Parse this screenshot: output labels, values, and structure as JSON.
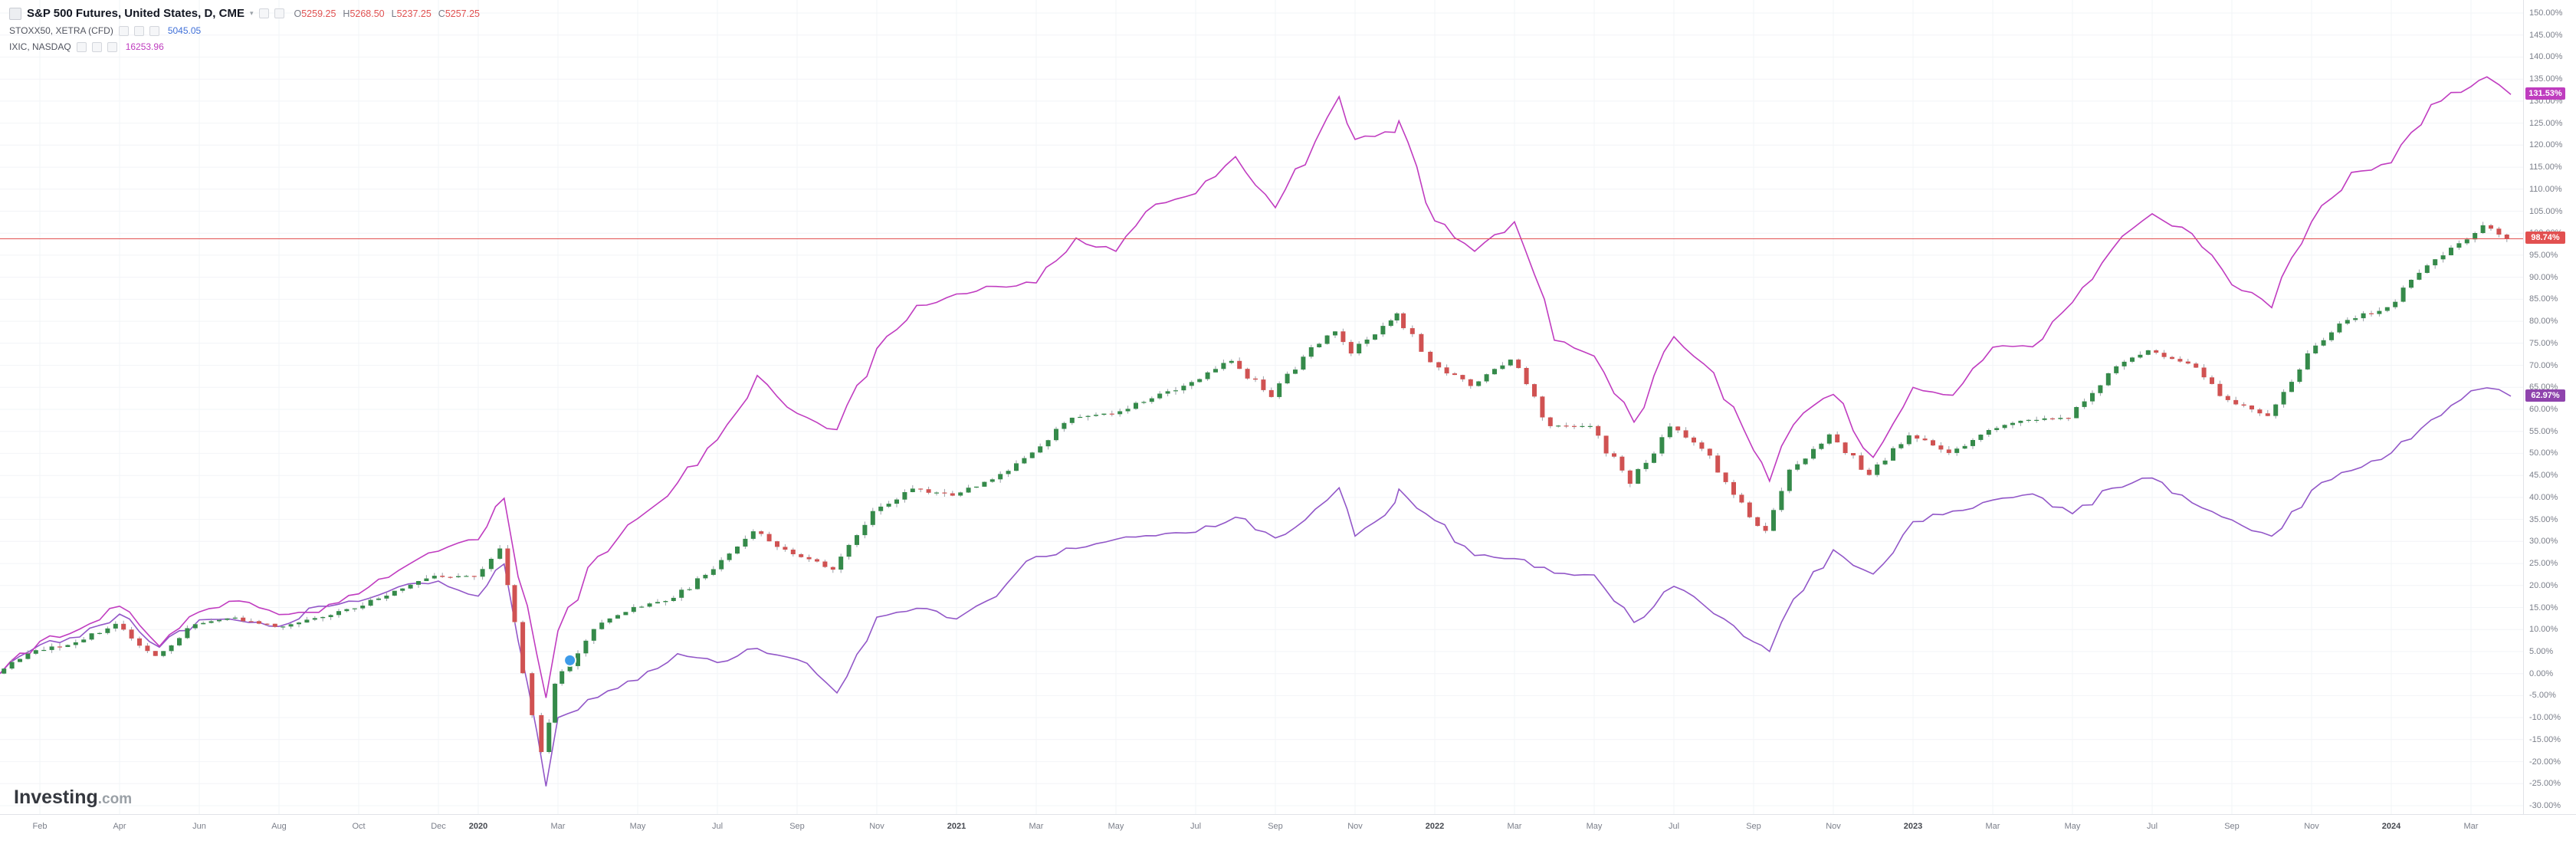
{
  "legend": {
    "sp": {
      "title": "S&P 500 Futures, United States, D, CME",
      "o_label": "O",
      "o": "5259.25",
      "h_label": "H",
      "h": "5268.50",
      "l_label": "L",
      "l": "5237.25",
      "c_label": "C",
      "c": "5257.25"
    },
    "stoxx": {
      "title": "STOXX50, XETRA (CFD)",
      "value": "5045.05"
    },
    "nasdaq": {
      "title": "IXIC, NASDAQ",
      "value": "16253.96"
    }
  },
  "watermark": {
    "name": "Investing",
    "tld": ".com"
  },
  "colors": {
    "sp_up": "#358a4a",
    "sp_down": "#d05252",
    "wick": "#9aa0a8",
    "nasdaq_line": "#c03cc0",
    "stoxx_line": "#9257c8",
    "price_line": "#e25050",
    "badge_nasdaq": "#bf3dbf",
    "badge_sp": "#e25050",
    "badge_stoxx": "#8f44ad",
    "ohlc_values": "#e05252",
    "stoxx_value": "#3f6fd8",
    "nasdaq_value": "#bf3dbf",
    "marker": "#3d9be9",
    "grid": "#f2f4f7"
  },
  "chart_data": {
    "type": "line",
    "title": "S&P 500 Futures vs STOXX50 vs NASDAQ Composite, % change since Jan 2019",
    "x_unit": "months since end of Jan 2019 (fractional = intra-month extremes)",
    "x": [
      -1,
      0,
      1,
      2,
      3,
      4,
      5,
      6,
      7,
      8,
      9,
      10,
      11,
      11.65,
      12,
      12.7,
      13,
      14,
      15,
      16,
      17,
      18,
      19,
      20,
      21,
      22,
      23,
      24,
      25,
      26,
      27,
      28,
      29,
      30,
      31,
      32,
      32.6,
      33,
      34,
      34.1,
      35,
      36,
      37,
      38,
      39,
      40,
      41,
      42,
      43,
      43.4,
      44,
      45,
      46,
      47,
      48,
      49,
      50,
      51,
      52,
      53,
      54,
      55,
      56,
      57,
      58,
      59,
      60,
      61,
      61.4,
      62
    ],
    "series": [
      {
        "name": "S&P 500 Futures",
        "style": "candlestick",
        "color_up": "#358a4a",
        "color_down": "#d05252",
        "last_pct": 98.74,
        "values": [
          0,
          5.3,
          7.1,
          11.3,
          4.0,
          11.2,
          12.7,
          10.6,
          12.6,
          14.8,
          18.8,
          22.2,
          22.0,
          28.4,
          11.7,
          -17.8,
          -2.3,
          10.1,
          15.1,
          17.2,
          23.7,
          32.3,
          27.1,
          23.6,
          36.9,
          42.0,
          40.4,
          44.1,
          50.2,
          58.1,
          58.9,
          62.5,
          66.2,
          71.0,
          62.8,
          74.1,
          77.7,
          72.7,
          80.2,
          81.8,
          70.7,
          65.3,
          71.3,
          56.2,
          56.2,
          43.1,
          56.1,
          49.5,
          35.5,
          32.4,
          46.3,
          54.3,
          45.1,
          54.1,
          50.1,
          55.3,
          57.6,
          58.0,
          68.2,
          73.4,
          70.4,
          62.1,
          58.5,
          72.7,
          80.3,
          83.2,
          92.7,
          98.6,
          101.8,
          98.7
        ]
      },
      {
        "name": "IXIC, NASDAQ",
        "style": "line",
        "color": "#c03cc0",
        "last_pct": 131.53,
        "values": [
          0,
          7.3,
          10.1,
          15.3,
          6.2,
          14.0,
          16.5,
          13.4,
          13.9,
          18.1,
          23.4,
          27.8,
          30.4,
          39.8,
          22.0,
          -5.5,
          9.7,
          26.6,
          35.2,
          43.3,
          53.1,
          67.7,
          59.1,
          55.4,
          73.8,
          83.6,
          86.2,
          87.9,
          88.7,
          98.9,
          95.9,
          106.6,
          109.0,
          117.4,
          105.8,
          120.8,
          131.0,
          121.3,
          122.9,
          125.5,
          102.8,
          95.9,
          102.6,
          75.7,
          72.1,
          57.1,
          76.5,
          68.3,
          50.7,
          43.7,
          56.5,
          63.4,
          49.1,
          65.0,
          63.2,
          74.1,
          74.2,
          84.3,
          96.4,
          104.4,
          99.9,
          88.3,
          83.1,
          102.6,
          113.8,
          116.0,
          129.2,
          133.3,
          135.5,
          131.5
        ]
      },
      {
        "name": "STOXX50, XETRA (CFD)",
        "style": "line",
        "color": "#9257c8",
        "last_pct": 62.97,
        "values": [
          0,
          6.5,
          8.3,
          13.5,
          6.0,
          12.2,
          12.0,
          10.7,
          15.3,
          16.4,
          19.7,
          21.0,
          17.6,
          24.9,
          7.5,
          -25.6,
          -10.0,
          -5.4,
          -1.5,
          4.5,
          2.5,
          5.7,
          3.2,
          -4.4,
          12.8,
          14.8,
          12.4,
          17.5,
          26.6,
          28.4,
          30.5,
          31.3,
          32.1,
          35.5,
          30.8,
          37.3,
          42.2,
          31.2,
          38.8,
          41.9,
          34.8,
          26.8,
          26.1,
          22.8,
          22.4,
          11.6,
          19.8,
          13.6,
          7.2,
          5.0,
          16.9,
          28.1,
          22.6,
          34.5,
          36.9,
          39.4,
          40.8,
          36.3,
          42.1,
          44.4,
          38.8,
          34.9,
          31.2,
          41.6,
          46.1,
          50.1,
          57.6,
          64.2,
          64.9,
          63.0
        ]
      }
    ],
    "y_axis": {
      "min": -30,
      "max": 150,
      "step": 5,
      "unit": "%",
      "side": "right",
      "grid": true
    },
    "x_axis": {
      "ticks": [
        {
          "m": 0,
          "label": "Feb"
        },
        {
          "m": 2,
          "label": "Apr"
        },
        {
          "m": 4,
          "label": "Jun"
        },
        {
          "m": 6,
          "label": "Aug"
        },
        {
          "m": 8,
          "label": "Oct"
        },
        {
          "m": 10,
          "label": "Dec"
        },
        {
          "m": 11,
          "label": "2020"
        },
        {
          "m": 13,
          "label": "Mar"
        },
        {
          "m": 15,
          "label": "May"
        },
        {
          "m": 17,
          "label": "Jul"
        },
        {
          "m": 19,
          "label": "Sep"
        },
        {
          "m": 21,
          "label": "Nov"
        },
        {
          "m": 23,
          "label": "2021"
        },
        {
          "m": 25,
          "label": "Mar"
        },
        {
          "m": 27,
          "label": "May"
        },
        {
          "m": 29,
          "label": "Jul"
        },
        {
          "m": 31,
          "label": "Sep"
        },
        {
          "m": 33,
          "label": "Nov"
        },
        {
          "m": 35,
          "label": "2022"
        },
        {
          "m": 37,
          "label": "Mar"
        },
        {
          "m": 39,
          "label": "May"
        },
        {
          "m": 41,
          "label": "Jul"
        },
        {
          "m": 43,
          "label": "Sep"
        },
        {
          "m": 45,
          "label": "Nov"
        },
        {
          "m": 47,
          "label": "2023"
        },
        {
          "m": 49,
          "label": "Mar"
        },
        {
          "m": 51,
          "label": "May"
        },
        {
          "m": 53,
          "label": "Jul"
        },
        {
          "m": 55,
          "label": "Sep"
        },
        {
          "m": 57,
          "label": "Nov"
        },
        {
          "m": 59,
          "label": "2024"
        },
        {
          "m": 61,
          "label": "Mar"
        }
      ]
    },
    "price_line": {
      "value": 98.74,
      "color": "#e25050"
    },
    "badges": [
      {
        "label": "131.53%",
        "value": 131.53,
        "color": "#bf3dbf"
      },
      {
        "label": "98.74%",
        "value": 98.74,
        "color": "#e25050"
      },
      {
        "label": "62.97%",
        "value": 62.97,
        "color": "#8f44ad"
      }
    ],
    "marker": {
      "x": 13.3,
      "value": 3,
      "color": "#3d9be9"
    },
    "legend_position": "top-left"
  }
}
